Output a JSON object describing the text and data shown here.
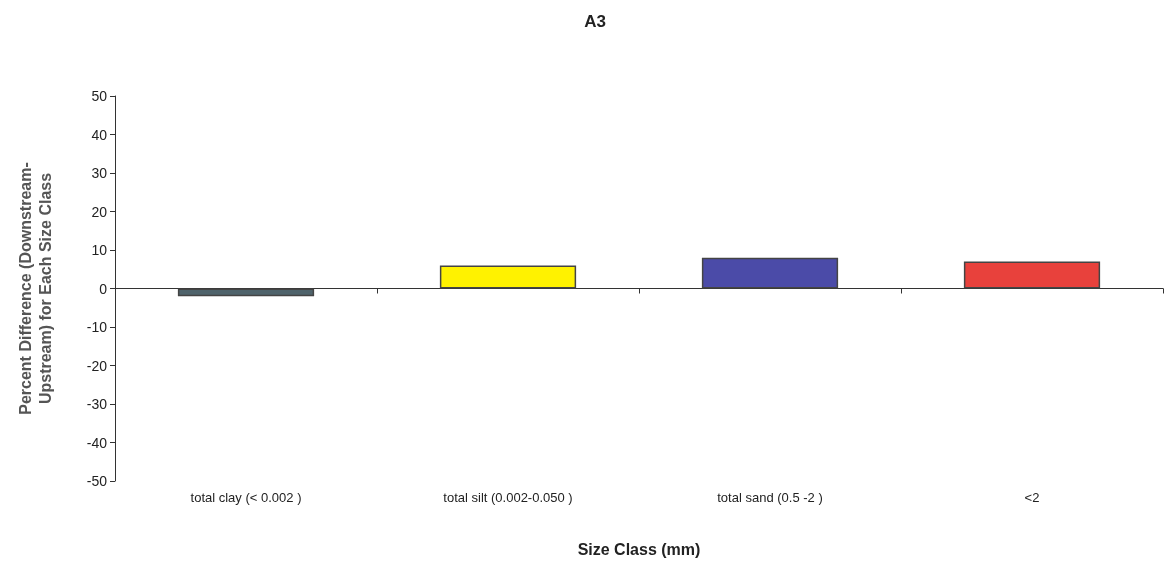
{
  "chart_data": {
    "type": "bar",
    "title": "A3",
    "xlabel": "Size Class (mm)",
    "ylabel": "Percent Difference (Downstream-\nUpstream) for Each Size Class",
    "categories": [
      "total clay (< 0.002 )",
      "total silt (0.002-0.050 )",
      "total sand (0.5 -2 )",
      "<2"
    ],
    "values": [
      -2,
      6,
      8,
      7
    ],
    "colors": [
      "#4f636b",
      "#fff200",
      "#4b4ba8",
      "#e8413c"
    ],
    "ylim": [
      -50,
      50
    ],
    "yticks": [
      -50,
      -40,
      -30,
      -20,
      -10,
      0,
      10,
      20,
      30,
      40,
      50
    ]
  }
}
